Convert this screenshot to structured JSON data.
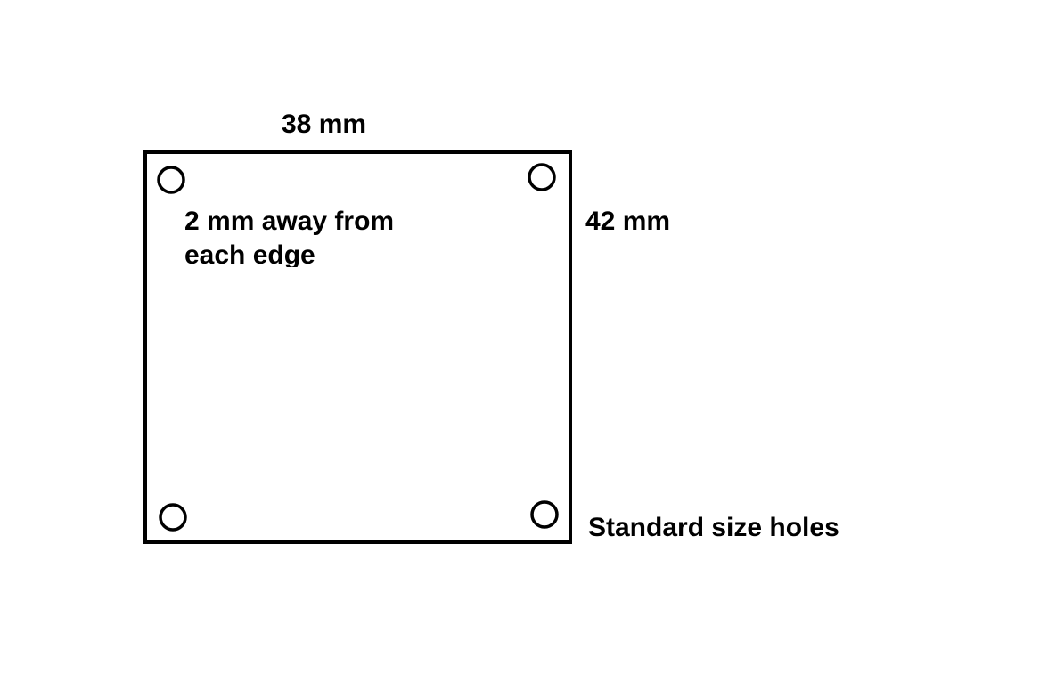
{
  "diagram": {
    "width_label": "38 mm",
    "height_label": "42 mm",
    "edge_note_line1": "2 mm away from",
    "edge_note_line2": "each edge",
    "holes_label": "Standard size holes",
    "stroke_color": "#000000",
    "background_color": "#ffffff"
  }
}
